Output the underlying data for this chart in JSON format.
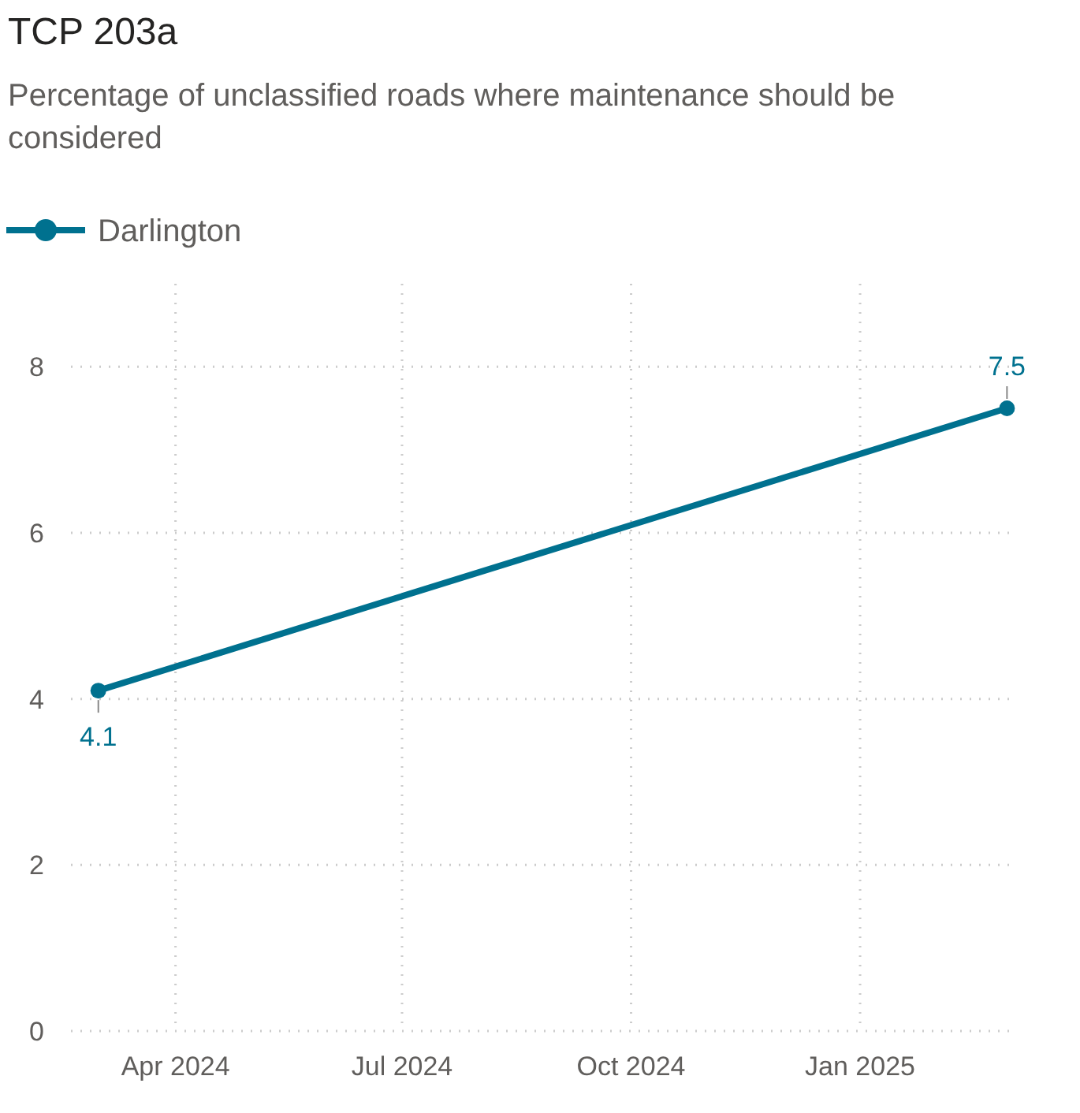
{
  "chart_data": {
    "type": "line",
    "title": "TCP 203a",
    "subtitle": "Percentage of unclassified roads where maintenance should be considered",
    "x": [
      "2024-03-01",
      "2025-03-01"
    ],
    "series": [
      {
        "name": "Darlington",
        "color": "#00718f",
        "values": [
          4.1,
          7.5
        ],
        "value_labels": [
          "4.1",
          "7.5"
        ]
      }
    ],
    "xlim": [
      "2024-02-19",
      "2025-03-05"
    ],
    "xticks": [
      {
        "value": "2024-04-01",
        "label": "Apr 2024"
      },
      {
        "value": "2024-07-01",
        "label": "Jul 2024"
      },
      {
        "value": "2024-10-01",
        "label": "Oct 2024"
      },
      {
        "value": "2025-01-01",
        "label": "Jan 2025"
      }
    ],
    "ylim": [
      0,
      9
    ],
    "yticks": [
      0,
      2,
      4,
      6,
      8
    ],
    "grid": true,
    "legend": "top left",
    "marker": "circle",
    "line_style": "solid"
  }
}
